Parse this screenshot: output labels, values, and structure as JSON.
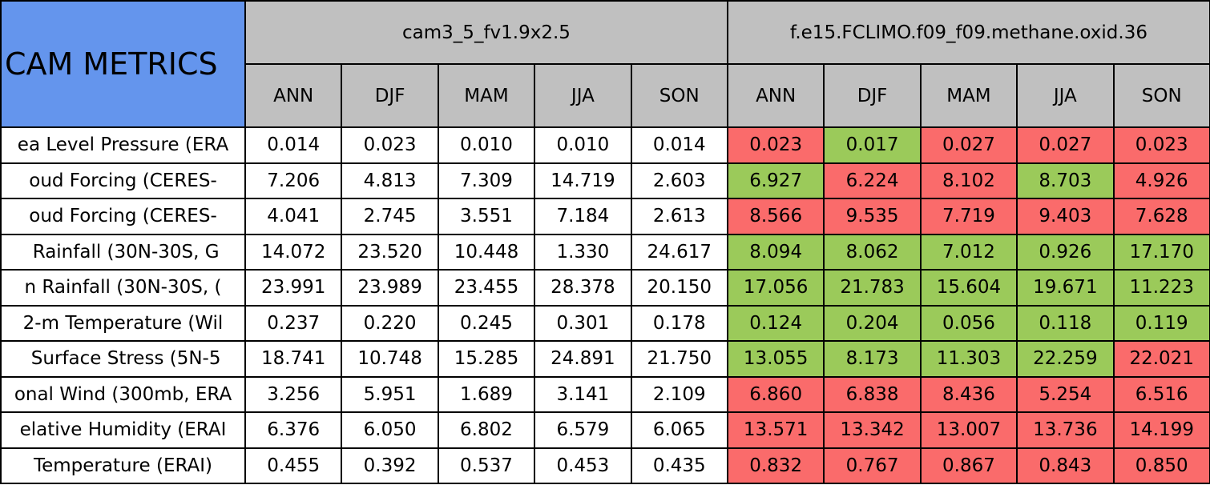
{
  "table": {
    "corner": "CAM METRICS",
    "models": [
      "cam3_5_fv1.9x2.5",
      "f.e15.FCLIMO.f09_f09.methane.oxid.36"
    ],
    "seasons": [
      "ANN",
      "DJF",
      "MAM",
      "JJA",
      "SON"
    ],
    "header_color": "#c0c0c0",
    "corner_color": "#6495ed",
    "status_colors": {
      "worse": "#fa6b6b",
      "better": "#9bca5a"
    },
    "rows": [
      {
        "label": "ea Level Pressure (ERA",
        "values": [
          "0.014",
          "0.023",
          "0.010",
          "0.010",
          "0.014",
          "0.023",
          "0.017",
          "0.027",
          "0.027",
          "0.023"
        ],
        "status": [
          null,
          null,
          null,
          null,
          null,
          "worse",
          "better",
          "worse",
          "worse",
          "worse"
        ]
      },
      {
        "label": "oud Forcing (CERES-",
        "values": [
          "7.206",
          "4.813",
          "7.309",
          "14.719",
          "2.603",
          "6.927",
          "6.224",
          "8.102",
          "8.703",
          "4.926"
        ],
        "status": [
          null,
          null,
          null,
          null,
          null,
          "better",
          "worse",
          "worse",
          "better",
          "worse"
        ]
      },
      {
        "label": "oud Forcing (CERES-",
        "values": [
          "4.041",
          "2.745",
          "3.551",
          "7.184",
          "2.613",
          "8.566",
          "9.535",
          "7.719",
          "9.403",
          "7.628"
        ],
        "status": [
          null,
          null,
          null,
          null,
          null,
          "worse",
          "worse",
          "worse",
          "worse",
          "worse"
        ]
      },
      {
        "label": " Rainfall (30N-30S, G",
        "values": [
          "14.072",
          "23.520",
          "10.448",
          "1.330",
          "24.617",
          "8.094",
          "8.062",
          "7.012",
          "0.926",
          "17.170"
        ],
        "status": [
          null,
          null,
          null,
          null,
          null,
          "better",
          "better",
          "better",
          "better",
          "better"
        ]
      },
      {
        "label": "n Rainfall (30N-30S, (",
        "values": [
          "23.991",
          "23.989",
          "23.455",
          "28.378",
          "20.150",
          "17.056",
          "21.783",
          "15.604",
          "19.671",
          "11.223"
        ],
        "status": [
          null,
          null,
          null,
          null,
          null,
          "better",
          "better",
          "better",
          "better",
          "better"
        ]
      },
      {
        "label": "2-m Temperature (Wil",
        "values": [
          "0.237",
          "0.220",
          "0.245",
          "0.301",
          "0.178",
          "0.124",
          "0.204",
          "0.056",
          "0.118",
          "0.119"
        ],
        "status": [
          null,
          null,
          null,
          null,
          null,
          "better",
          "better",
          "better",
          "better",
          "better"
        ]
      },
      {
        "label": " Surface Stress (5N-5",
        "values": [
          "18.741",
          "10.748",
          "15.285",
          "24.891",
          "21.750",
          "13.055",
          "8.173",
          "11.303",
          "22.259",
          "22.021"
        ],
        "status": [
          null,
          null,
          null,
          null,
          null,
          "better",
          "better",
          "better",
          "better",
          "worse"
        ]
      },
      {
        "label": "onal Wind (300mb, ERA",
        "values": [
          "3.256",
          "5.951",
          "1.689",
          "3.141",
          "2.109",
          "6.860",
          "6.838",
          "8.436",
          "5.254",
          "6.516"
        ],
        "status": [
          null,
          null,
          null,
          null,
          null,
          "worse",
          "worse",
          "worse",
          "worse",
          "worse"
        ]
      },
      {
        "label": "elative Humidity (ERAI",
        "values": [
          "6.376",
          "6.050",
          "6.802",
          "6.579",
          "6.065",
          "13.571",
          "13.342",
          "13.007",
          "13.736",
          "14.199"
        ],
        "status": [
          null,
          null,
          null,
          null,
          null,
          "worse",
          "worse",
          "worse",
          "worse",
          "worse"
        ]
      },
      {
        "label": "Temperature (ERAI)",
        "values": [
          "0.455",
          "0.392",
          "0.537",
          "0.453",
          "0.435",
          "0.832",
          "0.767",
          "0.867",
          "0.843",
          "0.850"
        ],
        "status": [
          null,
          null,
          null,
          null,
          null,
          "worse",
          "worse",
          "worse",
          "worse",
          "worse"
        ]
      }
    ]
  }
}
